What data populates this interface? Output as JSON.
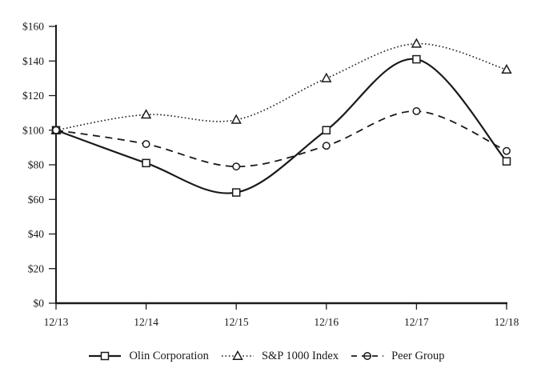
{
  "figure": {
    "background": "#ffffff",
    "ink_color": "#1a1a1a"
  },
  "chart_data": {
    "type": "line",
    "title": "",
    "xlabel": "",
    "ylabel": "",
    "grid": false,
    "legend_position": "bottom",
    "x_categories": [
      "12/13",
      "12/14",
      "12/15",
      "12/16",
      "12/17",
      "12/18"
    ],
    "y_axis": {
      "min": 0,
      "max": 160,
      "step": 20,
      "tick_labels": [
        "$0",
        "$20",
        "$40",
        "$60",
        "$80",
        "$100",
        "$120",
        "$140",
        "$160"
      ]
    },
    "series": [
      {
        "name": "Olin Corporation",
        "values": [
          100,
          81,
          64,
          100,
          141,
          82
        ],
        "line_style": "solid",
        "marker": "square",
        "color": "#1a1a1a"
      },
      {
        "name": "S&P 1000 Index",
        "values": [
          100,
          109,
          106,
          130,
          150,
          135
        ],
        "line_style": "dotted",
        "marker": "triangle",
        "color": "#1a1a1a"
      },
      {
        "name": "Peer Group",
        "values": [
          100,
          92,
          79,
          91,
          111,
          88
        ],
        "line_style": "dashed",
        "marker": "circle",
        "color": "#1a1a1a"
      }
    ]
  }
}
